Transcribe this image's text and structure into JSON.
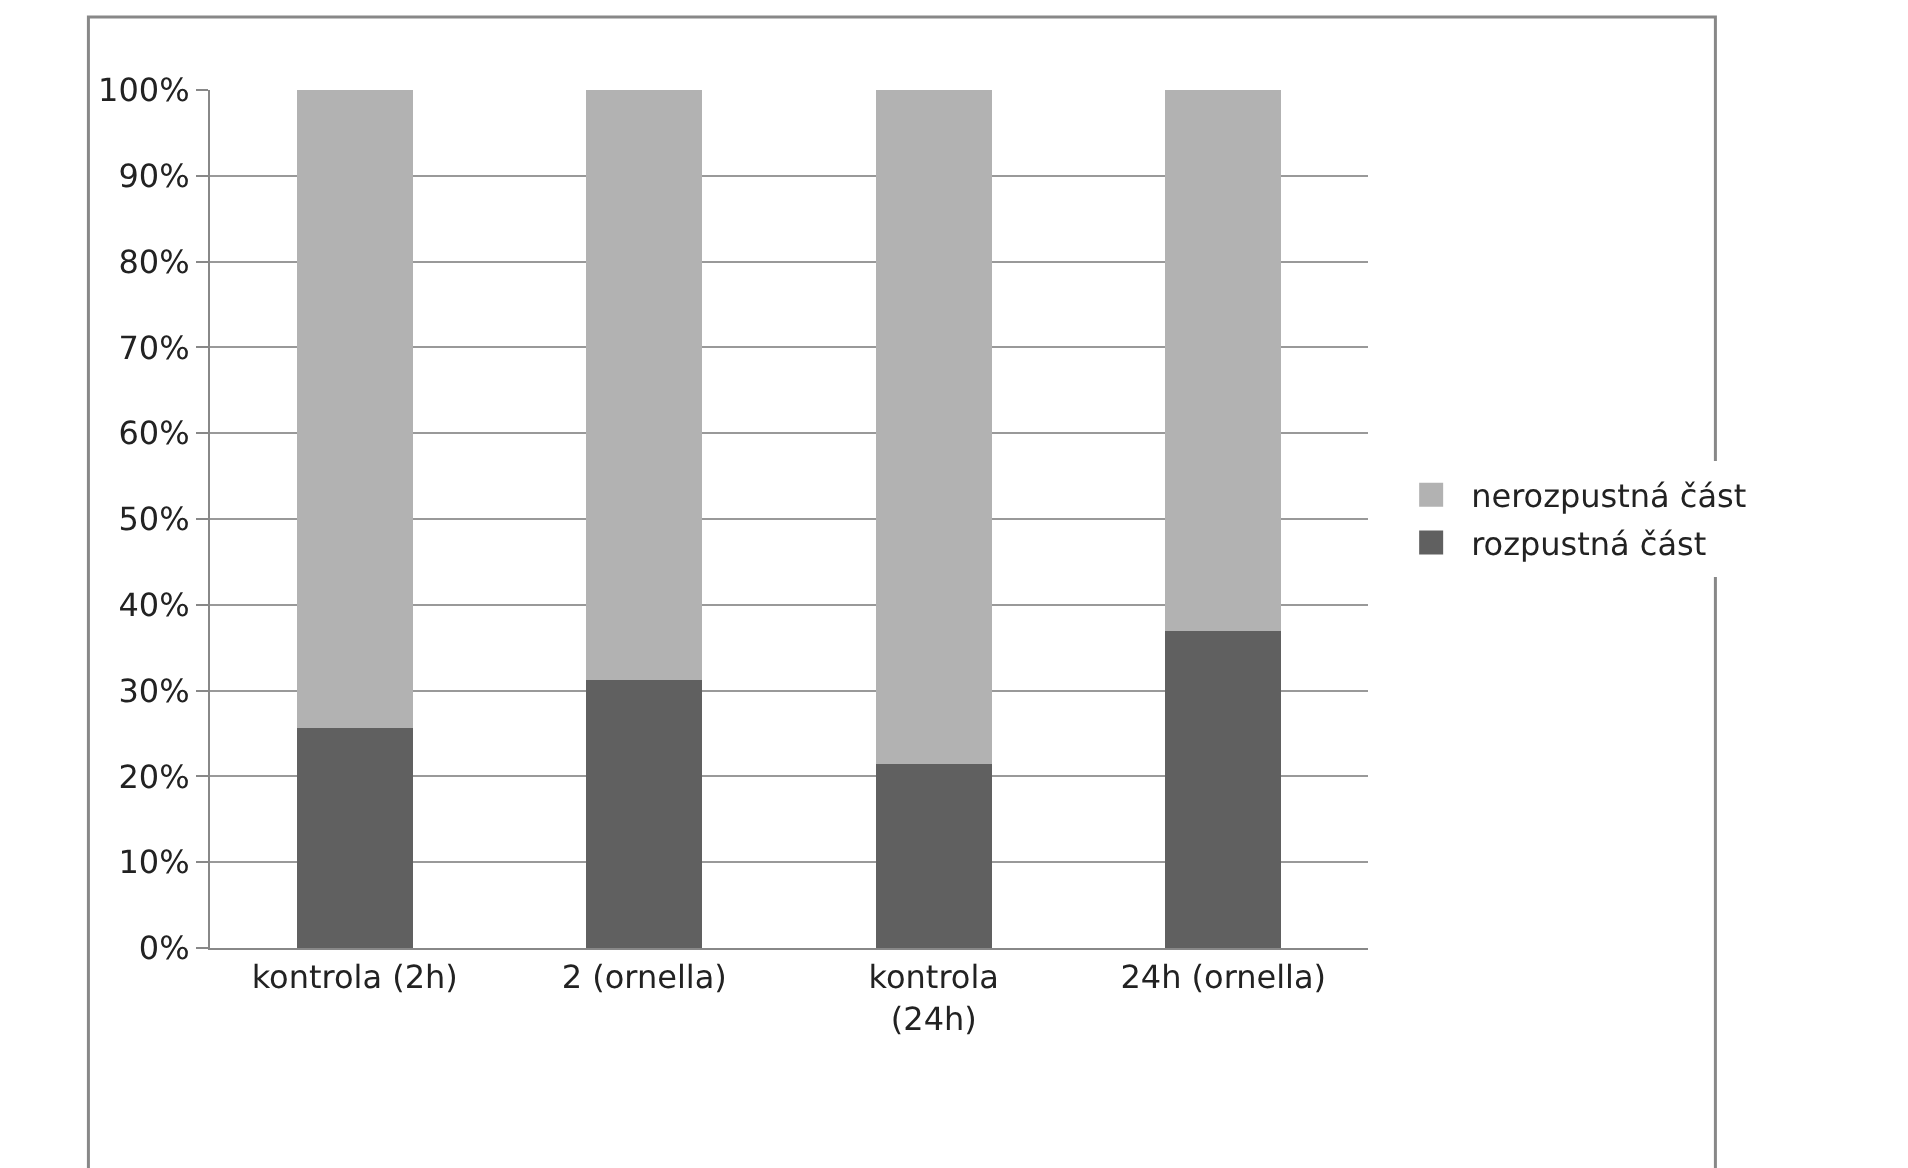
{
  "chart_data": {
    "type": "bar",
    "stacked": true,
    "categories": [
      "kontrola (2h)",
      "2 (ornella)",
      "kontrola (24h)",
      "24h (ornella)"
    ],
    "series": [
      {
        "name": "rozpustná část",
        "color": "#606060",
        "values": [
          25.6,
          31.2,
          21.5,
          36.9
        ]
      },
      {
        "name": "nerozpustná část",
        "color": "#b2b2b2",
        "values": [
          74.4,
          68.8,
          78.5,
          63.1
        ]
      }
    ],
    "ylim": [
      0,
      100
    ],
    "yticks": [
      {
        "value": 0,
        "label": "0%"
      },
      {
        "value": 10,
        "label": "10%"
      },
      {
        "value": 20,
        "label": "20%"
      },
      {
        "value": 30,
        "label": "30%"
      },
      {
        "value": 40,
        "label": "40%"
      },
      {
        "value": 50,
        "label": "50%"
      },
      {
        "value": 60,
        "label": "60%"
      },
      {
        "value": 70,
        "label": "70%"
      },
      {
        "value": 80,
        "label": "80%"
      },
      {
        "value": 90,
        "label": "90%"
      },
      {
        "value": 100,
        "label": "100%"
      }
    ],
    "grid": "y",
    "legend": "right"
  }
}
